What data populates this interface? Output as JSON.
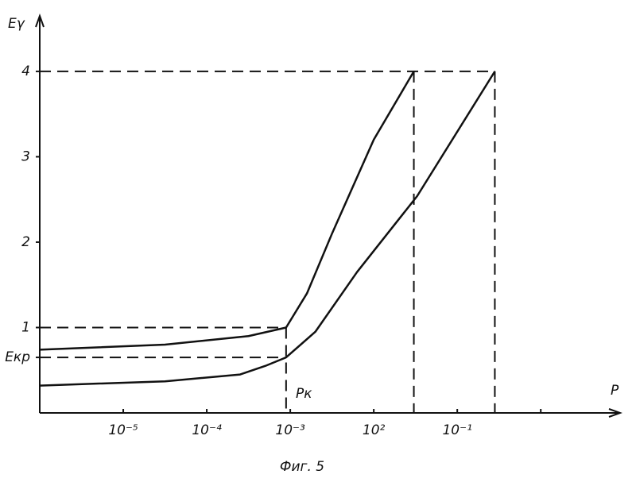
{
  "chart_data": {
    "type": "line",
    "y_label": "Eγ",
    "x_label": "P",
    "annotation": "Pк",
    "caption": "Фиг. 5",
    "xlim": [
      -6,
      0.95
    ],
    "ylim": [
      0,
      4.65
    ],
    "xticks": [
      {
        "value": -5,
        "label": "10⁻⁵"
      },
      {
        "value": -4,
        "label": "10⁻⁴"
      },
      {
        "value": -3,
        "label": "10⁻³"
      },
      {
        "value": -2,
        "label": "10²"
      },
      {
        "value": -1,
        "label": "10⁻¹"
      },
      {
        "value": 0,
        "label": null
      }
    ],
    "yticks": [
      {
        "value": 0.65,
        "label": "Eкр"
      },
      1,
      2,
      3,
      4
    ],
    "series": [
      {
        "color": "#111",
        "x": [
          -6,
          -4.5,
          -3.5,
          -3.05,
          -2.8,
          -2.5,
          -2.0,
          -1.52
        ],
        "values": [
          0.74,
          0.8,
          0.9,
          1.0,
          1.4,
          2.1,
          3.2,
          4.0
        ]
      },
      {
        "color": "#111",
        "x": [
          -6,
          -4.5,
          -3.6,
          -3.3,
          -3.05,
          -2.7,
          -2.2,
          -1.48,
          -0.55
        ],
        "values": [
          0.32,
          0.37,
          0.45,
          0.55,
          0.65,
          0.95,
          1.65,
          2.54,
          4.0
        ]
      }
    ]
  }
}
